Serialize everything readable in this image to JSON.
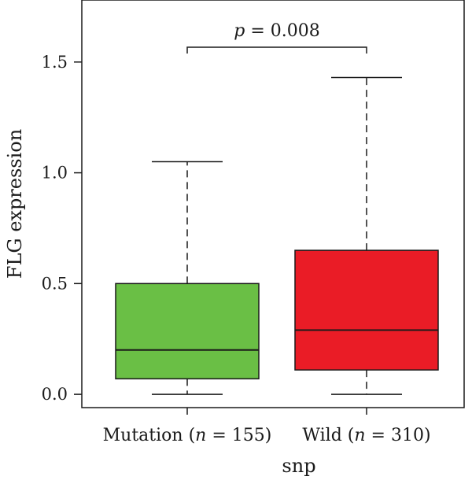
{
  "chart_data": {
    "type": "box",
    "xlabel": "snp",
    "ylabel": "FLG expression",
    "ylim": [
      -0.06,
      1.78
    ],
    "yticks": [
      "0.0",
      "0.5",
      "1.0",
      "1.5"
    ],
    "ytick_values": [
      0.0,
      0.5,
      1.0,
      1.5
    ],
    "grid": false,
    "categories": [
      {
        "name": "Mutation",
        "n_text": "n",
        "n_value": "= 155",
        "label_prefix": "Mutation (",
        "label_suffix": ")"
      },
      {
        "name": "Wild",
        "n_text": "n",
        "n_value": "= 310",
        "label_prefix": "Wild (",
        "label_suffix": ")"
      }
    ],
    "boxes": [
      {
        "category": "Mutation",
        "min": 0.0,
        "q1": 0.07,
        "median": 0.2,
        "q3": 0.5,
        "max": 1.05,
        "color": "#6abf45"
      },
      {
        "category": "Wild",
        "min": 0.0,
        "q1": 0.11,
        "median": 0.29,
        "q3": 0.65,
        "max": 1.43,
        "color": "#ea1c26"
      }
    ],
    "annotation": {
      "p_symbol": "p",
      "p_text": "= 0.008",
      "level": 1.58
    }
  }
}
